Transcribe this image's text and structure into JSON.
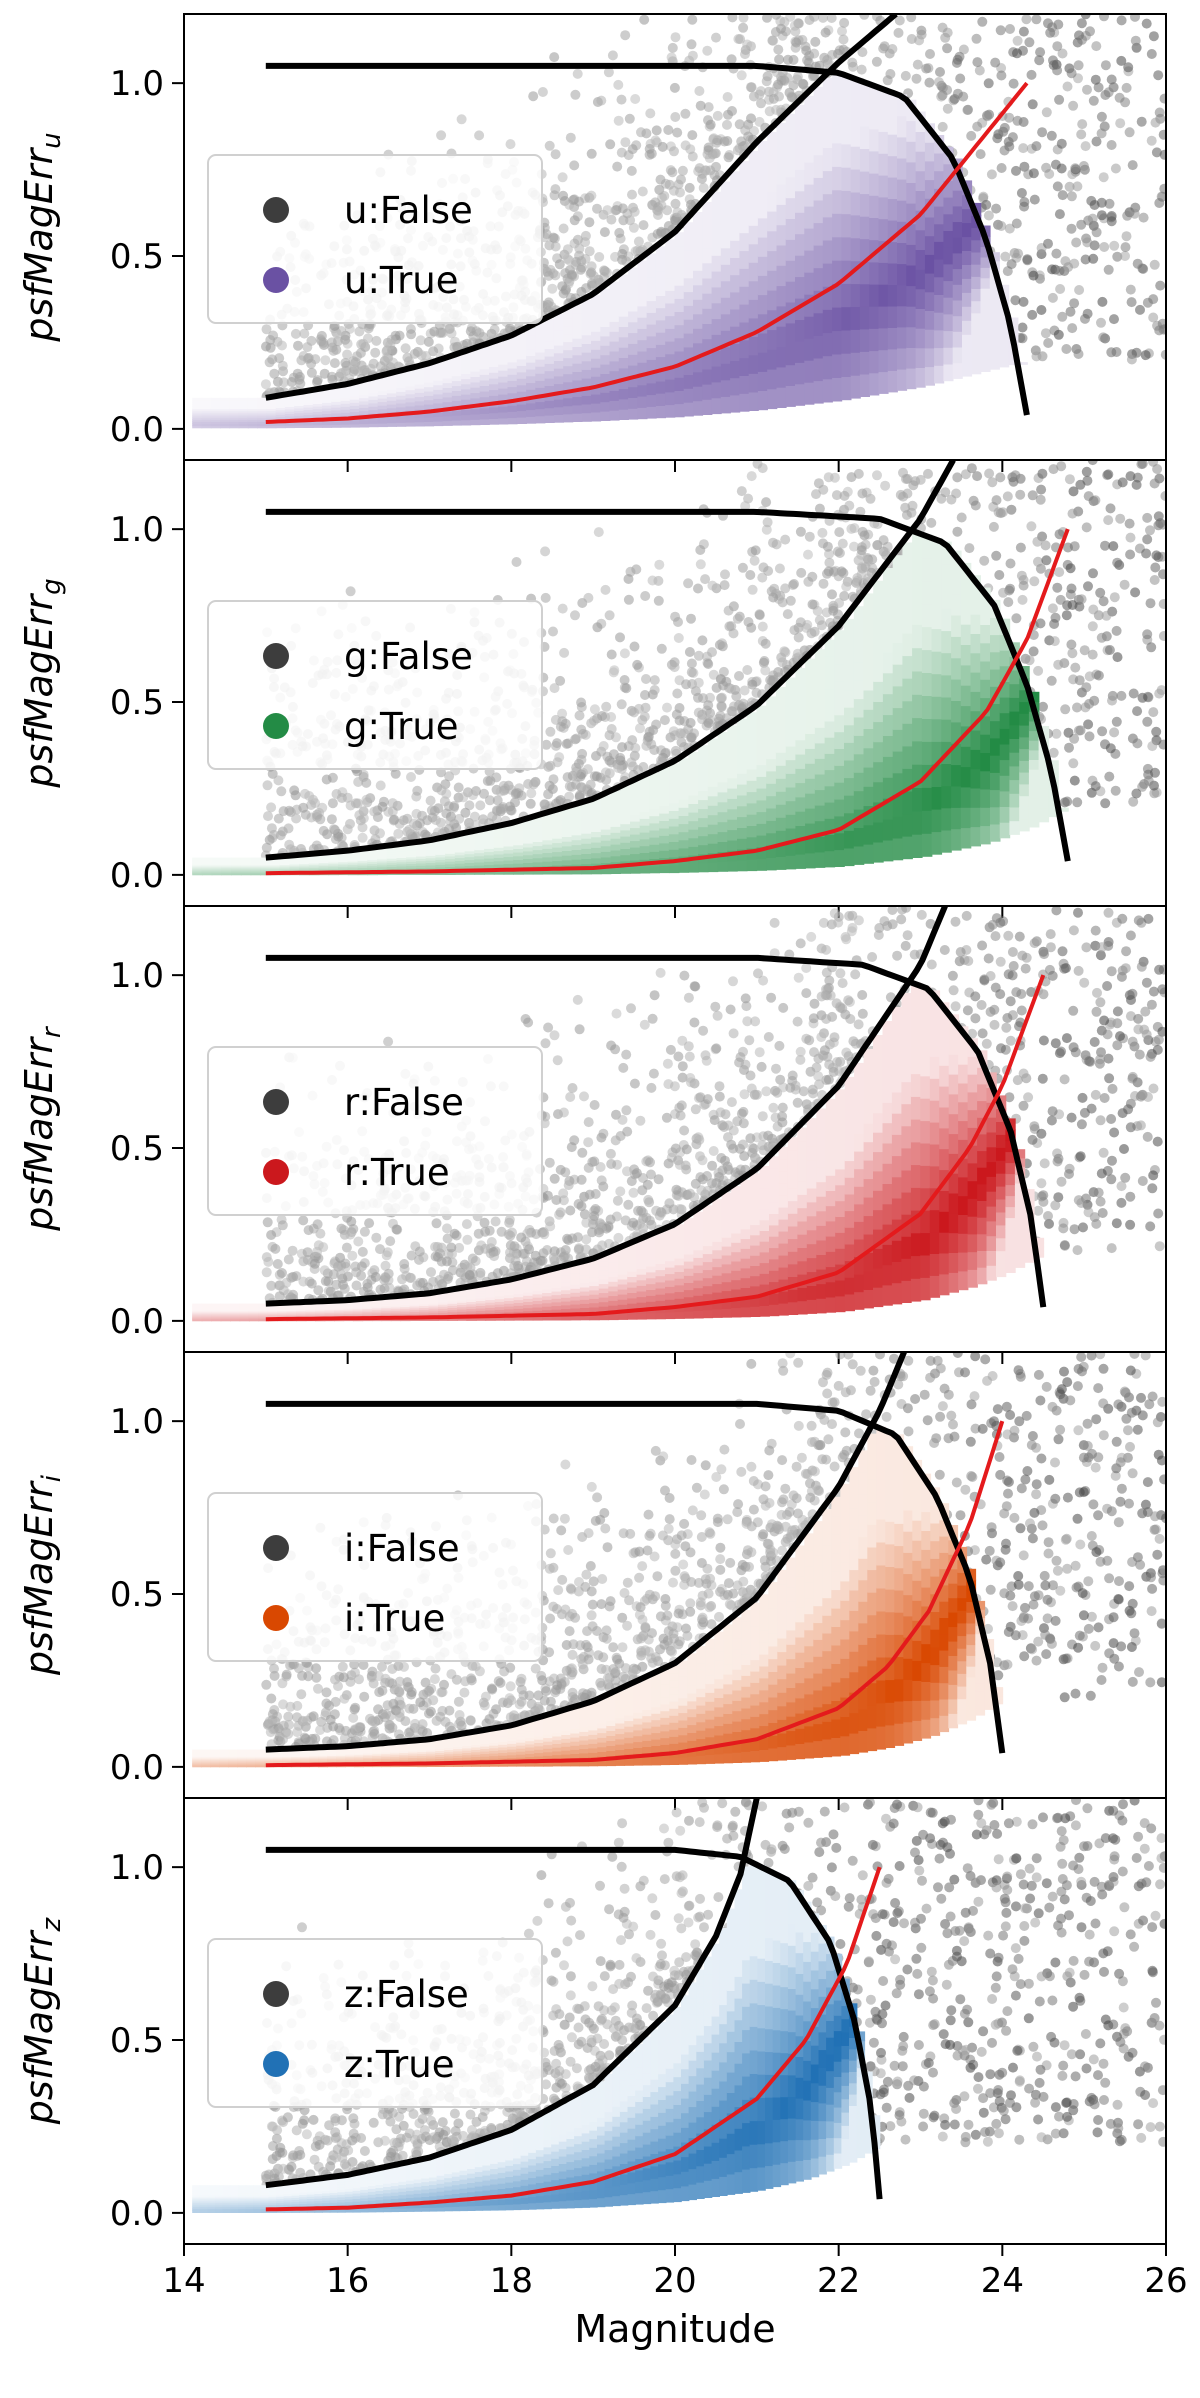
{
  "chart_data": {
    "type": "scatter",
    "xlabel": "Magnitude",
    "xlim": [
      14,
      26
    ],
    "xticks": [
      14,
      16,
      18,
      20,
      22,
      24,
      26
    ],
    "ylim": [
      -0.09,
      1.2
    ],
    "yticks": [
      0.0,
      0.5,
      1.0
    ],
    "legend_position": "center-left",
    "grid": false,
    "panels": [
      {
        "band": "u",
        "ylabel": "psfMagErr",
        "ylabel_sub": "u",
        "false_label": "u:False",
        "true_label": "u:True",
        "true_color": "#6a51a3",
        "false_color": "#3d3d3d",
        "mag_limit": 24.3,
        "upper_envelope": {
          "mag": [
            15,
            16,
            17,
            18,
            19,
            20,
            21,
            22,
            22.7
          ],
          "err": [
            0.09,
            0.13,
            0.19,
            0.27,
            0.39,
            0.57,
            0.83,
            1.06,
            1.2
          ]
        },
        "cut_curve": {
          "mag": [
            15,
            17,
            19,
            21,
            22,
            22.8,
            23.4,
            23.8,
            24.1,
            24.3
          ],
          "err": [
            1.05,
            1.05,
            1.05,
            1.05,
            1.03,
            0.96,
            0.78,
            0.55,
            0.3,
            0.04
          ]
        },
        "median_curve": {
          "mag": [
            15,
            16,
            17,
            18,
            19,
            20,
            21,
            22,
            23,
            24.3
          ],
          "err": [
            0.02,
            0.03,
            0.05,
            0.08,
            0.12,
            0.18,
            0.28,
            0.42,
            0.62,
            1.0
          ]
        }
      },
      {
        "band": "g",
        "ylabel": "psfMagErr",
        "ylabel_sub": "g",
        "false_label": "g:False",
        "true_label": "g:True",
        "true_color": "#238b45",
        "false_color": "#3d3d3d",
        "mag_limit": 24.8,
        "upper_envelope": {
          "mag": [
            15,
            16,
            17,
            18,
            19,
            20,
            21,
            22,
            23,
            23.4
          ],
          "err": [
            0.05,
            0.07,
            0.1,
            0.15,
            0.22,
            0.33,
            0.49,
            0.72,
            1.03,
            1.2
          ]
        },
        "cut_curve": {
          "mag": [
            15,
            17,
            19,
            21,
            22.5,
            23.3,
            23.9,
            24.3,
            24.6,
            24.8
          ],
          "err": [
            1.05,
            1.05,
            1.05,
            1.05,
            1.03,
            0.96,
            0.78,
            0.55,
            0.3,
            0.04
          ]
        },
        "median_curve": {
          "mag": [
            15,
            17,
            19,
            20,
            21,
            22,
            23,
            23.8,
            24.3,
            24.8
          ],
          "err": [
            0.005,
            0.01,
            0.02,
            0.04,
            0.07,
            0.13,
            0.27,
            0.47,
            0.68,
            1.0
          ]
        }
      },
      {
        "band": "r",
        "ylabel": "psfMagErr",
        "ylabel_sub": "r",
        "false_label": "r:False",
        "true_label": "r:True",
        "true_color": "#cb181d",
        "false_color": "#3d3d3d",
        "mag_limit": 24.5,
        "upper_envelope": {
          "mag": [
            15,
            16,
            17,
            18,
            19,
            20,
            21,
            22,
            23,
            23.3
          ],
          "err": [
            0.05,
            0.06,
            0.08,
            0.12,
            0.18,
            0.28,
            0.44,
            0.68,
            1.03,
            1.2
          ]
        },
        "cut_curve": {
          "mag": [
            15,
            17,
            19,
            21,
            22.3,
            23.1,
            23.7,
            24.1,
            24.35,
            24.5
          ],
          "err": [
            1.05,
            1.05,
            1.05,
            1.05,
            1.03,
            0.96,
            0.78,
            0.55,
            0.3,
            0.04
          ]
        },
        "median_curve": {
          "mag": [
            15,
            17,
            19,
            20,
            21,
            22,
            23,
            23.6,
            24.0,
            24.5
          ],
          "err": [
            0.005,
            0.01,
            0.02,
            0.04,
            0.07,
            0.14,
            0.31,
            0.5,
            0.68,
            1.0
          ]
        }
      },
      {
        "band": "i",
        "ylabel": "psfMagErr",
        "ylabel_sub": "i",
        "false_label": "i:False",
        "true_label": "i:True",
        "true_color": "#d94801",
        "false_color": "#3d3d3d",
        "mag_limit": 24.0,
        "upper_envelope": {
          "mag": [
            15,
            16,
            17,
            18,
            19,
            20,
            21,
            22,
            22.5,
            22.8
          ],
          "err": [
            0.05,
            0.06,
            0.08,
            0.12,
            0.19,
            0.3,
            0.49,
            0.81,
            1.03,
            1.2
          ]
        },
        "cut_curve": {
          "mag": [
            15,
            17,
            19,
            21,
            22,
            22.7,
            23.2,
            23.6,
            23.85,
            24.0
          ],
          "err": [
            1.05,
            1.05,
            1.05,
            1.05,
            1.03,
            0.96,
            0.78,
            0.55,
            0.3,
            0.04
          ]
        },
        "median_curve": {
          "mag": [
            15,
            17,
            19,
            20,
            21,
            22,
            22.6,
            23.1,
            23.6,
            24.0
          ],
          "err": [
            0.005,
            0.01,
            0.02,
            0.04,
            0.08,
            0.17,
            0.29,
            0.45,
            0.7,
            1.0
          ]
        }
      },
      {
        "band": "z",
        "ylabel": "psfMagErr",
        "ylabel_sub": "z",
        "false_label": "z:False",
        "true_label": "z:True",
        "true_color": "#2171b5",
        "false_color": "#3d3d3d",
        "mag_limit": 22.5,
        "upper_envelope": {
          "mag": [
            15,
            16,
            17,
            18,
            19,
            20,
            20.5,
            20.8,
            21.0
          ],
          "err": [
            0.08,
            0.11,
            0.16,
            0.24,
            0.37,
            0.6,
            0.8,
            0.98,
            1.2
          ]
        },
        "cut_curve": {
          "mag": [
            15,
            17,
            19,
            20,
            20.8,
            21.4,
            21.9,
            22.2,
            22.4,
            22.5
          ],
          "err": [
            1.05,
            1.05,
            1.05,
            1.05,
            1.03,
            0.96,
            0.78,
            0.55,
            0.3,
            0.04
          ]
        },
        "median_curve": {
          "mag": [
            15,
            16,
            17,
            18,
            19,
            20,
            21,
            21.6,
            22.1,
            22.5
          ],
          "err": [
            0.01,
            0.015,
            0.03,
            0.05,
            0.09,
            0.17,
            0.33,
            0.5,
            0.72,
            1.0
          ]
        }
      }
    ]
  }
}
